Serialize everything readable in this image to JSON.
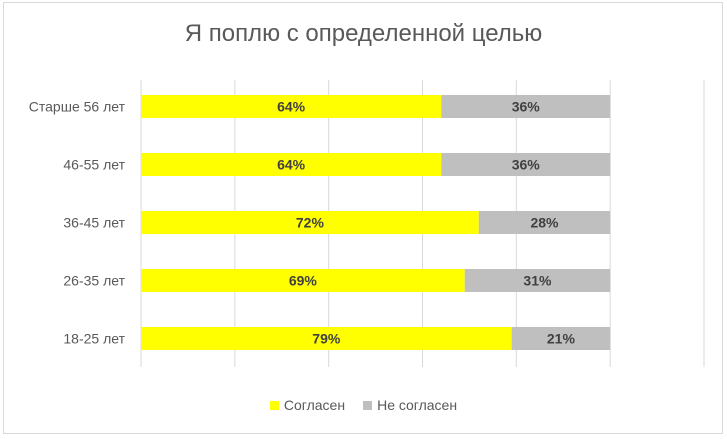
{
  "chart_data": {
    "type": "bar",
    "orientation": "horizontal",
    "stacked": true,
    "title": "Я поплю с определенной целью",
    "categories": [
      "Старше 56 лет",
      "46-55 лет",
      "36-45 лет",
      "26-35 лет",
      "18-25 лет"
    ],
    "series": [
      {
        "name": "Согласен",
        "color": "#ffff00",
        "values": [
          64,
          64,
          72,
          69,
          79
        ],
        "labels": [
          "64%",
          "64%",
          "72%",
          "69%",
          "79%"
        ]
      },
      {
        "name": "Не согласен",
        "color": "#bfbfbf",
        "values": [
          36,
          36,
          28,
          31,
          21
        ],
        "labels": [
          "36%",
          "36%",
          "28%",
          "31%",
          "21%"
        ]
      }
    ],
    "xlim": [
      0,
      120
    ],
    "grid_step": 20,
    "grid": true,
    "legend": "bottom"
  }
}
